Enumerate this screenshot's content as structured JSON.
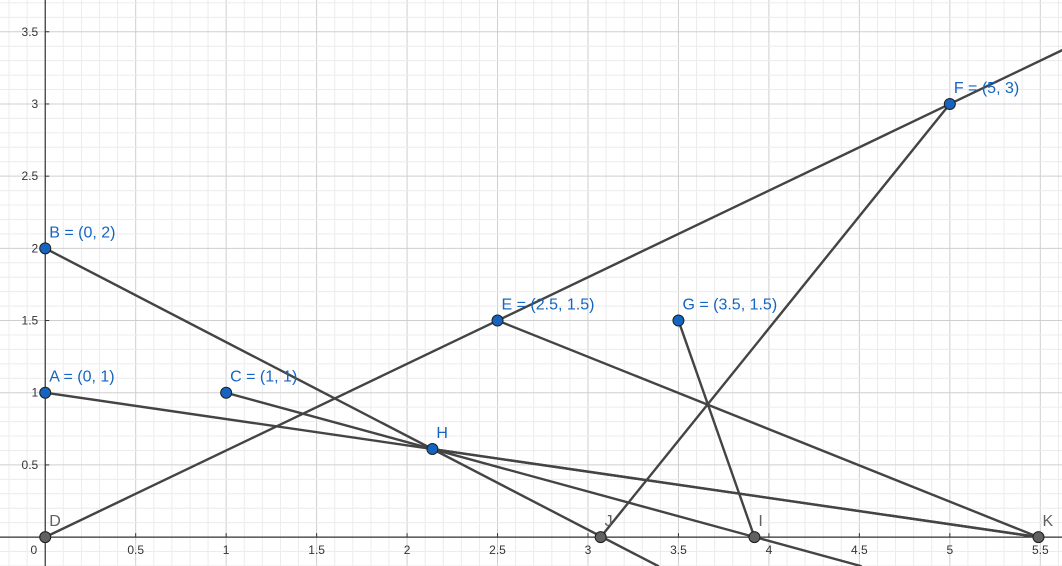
{
  "chart_data": {
    "type": "scatter",
    "xlim": [
      -0.25,
      5.62
    ],
    "ylim": [
      -0.2,
      3.72
    ],
    "grid": true,
    "x_ticks": [
      {
        "v": 0,
        "label": "0"
      },
      {
        "v": 0.5,
        "label": "0.5"
      },
      {
        "v": 1,
        "label": "1"
      },
      {
        "v": 1.5,
        "label": "1.5"
      },
      {
        "v": 2,
        "label": "2"
      },
      {
        "v": 2.5,
        "label": "2.5"
      },
      {
        "v": 3,
        "label": "3"
      },
      {
        "v": 3.5,
        "label": "3.5"
      },
      {
        "v": 4,
        "label": "4"
      },
      {
        "v": 4.5,
        "label": "4.5"
      },
      {
        "v": 5,
        "label": "5"
      },
      {
        "v": 5.5,
        "label": "5.5"
      }
    ],
    "y_ticks": [
      {
        "v": 0.5,
        "label": "0.5"
      },
      {
        "v": 1,
        "label": "1"
      },
      {
        "v": 1.5,
        "label": "1.5"
      },
      {
        "v": 2,
        "label": "2"
      },
      {
        "v": 2.5,
        "label": "2.5"
      },
      {
        "v": 3,
        "label": "3"
      },
      {
        "v": 3.5,
        "label": "3.5"
      }
    ],
    "points": [
      {
        "id": "A",
        "x": 0,
        "y": 1,
        "label": "A = (0, 1)",
        "kind": "free"
      },
      {
        "id": "B",
        "x": 0,
        "y": 2,
        "label": "B = (0, 2)",
        "kind": "free"
      },
      {
        "id": "C",
        "x": 1,
        "y": 1,
        "label": "C = (1, 1)",
        "kind": "free"
      },
      {
        "id": "D",
        "x": 0,
        "y": 0,
        "label": "D",
        "kind": "dependent"
      },
      {
        "id": "E",
        "x": 2.5,
        "y": 1.5,
        "label": "E = (2.5, 1.5)",
        "kind": "free"
      },
      {
        "id": "F",
        "x": 5,
        "y": 3,
        "label": "F = (5, 3)",
        "kind": "free"
      },
      {
        "id": "G",
        "x": 3.5,
        "y": 1.5,
        "label": "G = (3.5, 1.5)",
        "kind": "free"
      },
      {
        "id": "H",
        "x": 2.14,
        "y": 0.61,
        "label": "H",
        "kind": "free"
      },
      {
        "id": "I",
        "x": 3.92,
        "y": 0,
        "label": "I",
        "kind": "dependent"
      },
      {
        "id": "J",
        "x": 3.07,
        "y": 0,
        "label": "J",
        "kind": "dependent"
      },
      {
        "id": "K",
        "x": 5.49,
        "y": 0,
        "label": "K",
        "kind": "dependent"
      }
    ],
    "lines": [
      {
        "name": "line-DF",
        "type": "ray",
        "from": "D",
        "through": "F"
      },
      {
        "name": "line-BH",
        "type": "ray",
        "from": "B",
        "through": "H"
      },
      {
        "name": "line-CH",
        "type": "ray",
        "from": "C",
        "through": "H"
      },
      {
        "name": "line-AK",
        "type": "segment",
        "from": "A",
        "to": "K"
      },
      {
        "name": "line-HK",
        "type": "segment",
        "from": "H",
        "to": "K"
      },
      {
        "name": "line-EK",
        "type": "segment",
        "from": "E",
        "to": "K"
      },
      {
        "name": "line-GI",
        "type": "segment",
        "from": "G",
        "to": "I"
      },
      {
        "name": "line-FJ",
        "type": "segment",
        "from": "F",
        "to": "J"
      }
    ]
  },
  "colors": {
    "grid_minor": "#ececec",
    "grid_major": "#cfcfcf",
    "axis": "#333333",
    "line": "#444444",
    "free_point": "#1565c0",
    "dependent_point": "#616161",
    "label_free": "#1565c0",
    "label_dependent": "#616161"
  }
}
